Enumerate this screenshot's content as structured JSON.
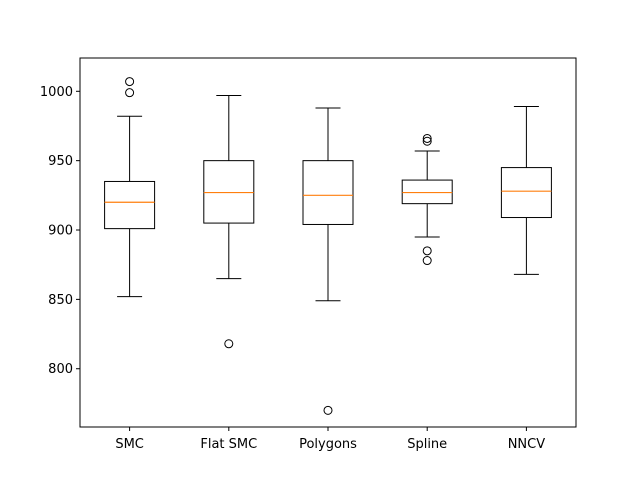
{
  "chart_data": {
    "type": "box",
    "title": "",
    "xlabel": "",
    "ylabel": "",
    "categories": [
      "SMC",
      "Flat SMC",
      "Polygons",
      "Spline",
      "NNCV"
    ],
    "ylim": [
      758,
      1024
    ],
    "yticks": [
      800,
      850,
      900,
      950,
      1000
    ],
    "ytick_labels": [
      "800",
      "850",
      "900",
      "950",
      "1000"
    ],
    "grid": false,
    "median_color": "#ff7f0e",
    "box_color": "#000000",
    "series": [
      {
        "whisker_low": 852,
        "q1": 901,
        "median": 920,
        "q3": 935,
        "whisker_high": 982,
        "outliers": [
          999,
          1007
        ]
      },
      {
        "whisker_low": 865,
        "q1": 905,
        "median": 927,
        "q3": 950,
        "whisker_high": 997,
        "outliers": [
          818
        ]
      },
      {
        "whisker_low": 849,
        "q1": 904,
        "median": 925,
        "q3": 950,
        "whisker_high": 988,
        "outliers": [
          770
        ]
      },
      {
        "whisker_low": 895,
        "q1": 919,
        "median": 927,
        "q3": 936,
        "whisker_high": 957,
        "outliers": [
          878,
          885,
          964,
          966
        ]
      },
      {
        "whisker_low": 868,
        "q1": 909,
        "median": 928,
        "q3": 945,
        "whisker_high": 989,
        "outliers": []
      }
    ]
  }
}
